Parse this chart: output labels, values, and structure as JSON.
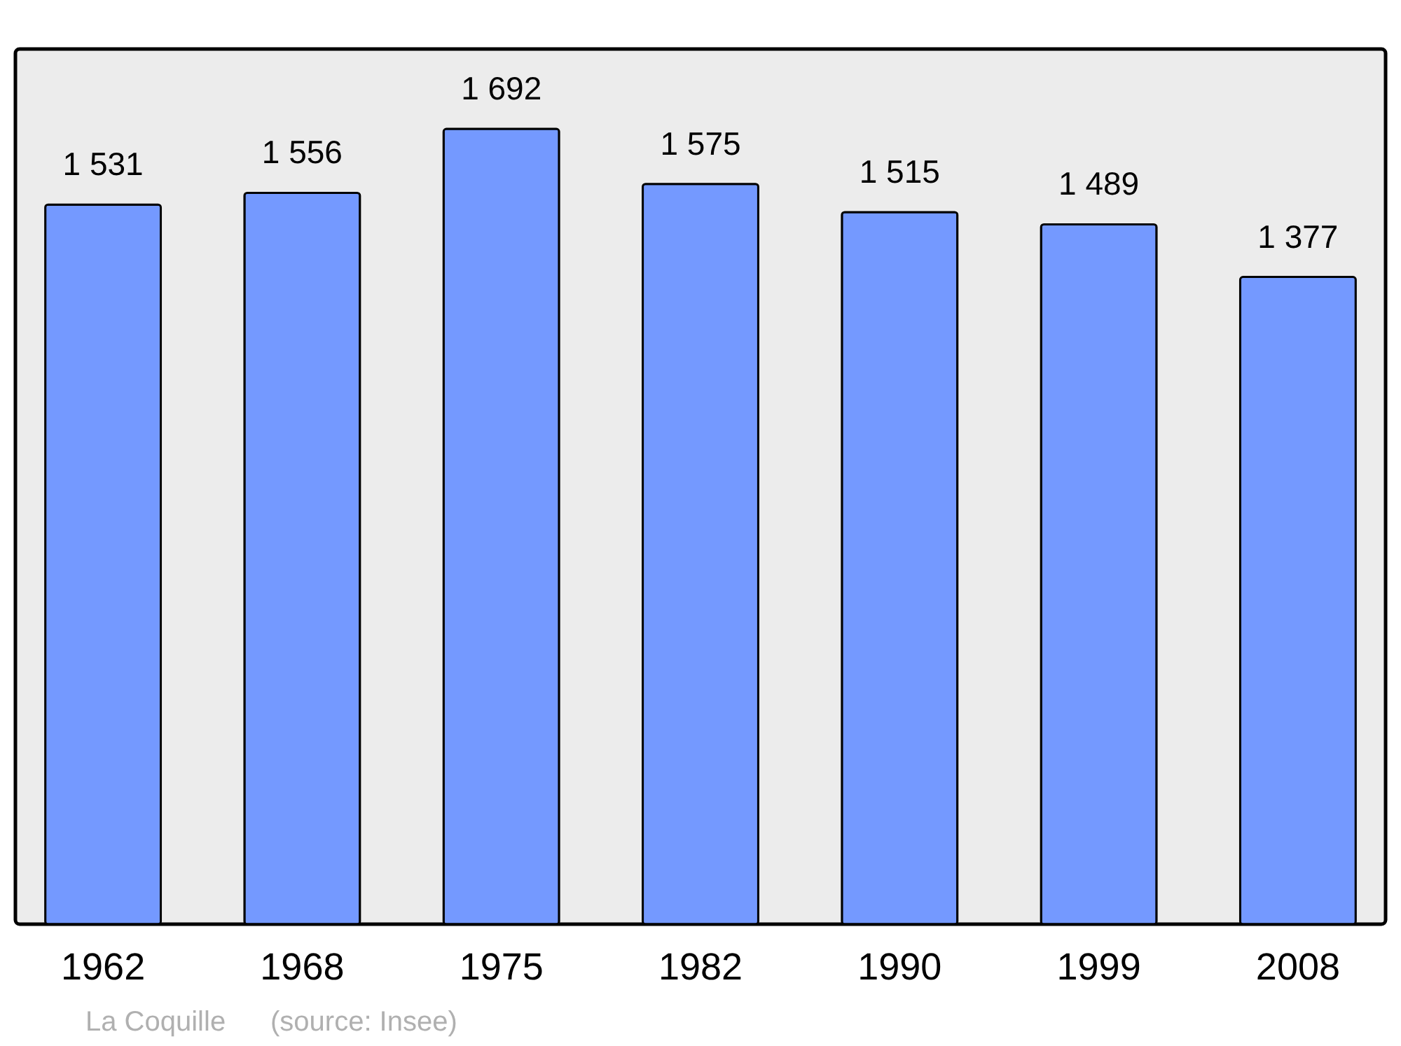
{
  "chart_data": {
    "type": "bar",
    "categories": [
      "1962",
      "1968",
      "1975",
      "1982",
      "1990",
      "1999",
      "2008"
    ],
    "values": [
      1531,
      1556,
      1692,
      1575,
      1515,
      1489,
      1377
    ],
    "value_labels": [
      "1 531",
      "1 556",
      "1 692",
      "1 575",
      "1 515",
      "1 489",
      "1 377"
    ],
    "color": "#7499ff",
    "ylim": [
      0,
      1862
    ],
    "tick_labels": "x",
    "annotations": [
      "La Coquille",
      "(source: Insee)"
    ]
  }
}
